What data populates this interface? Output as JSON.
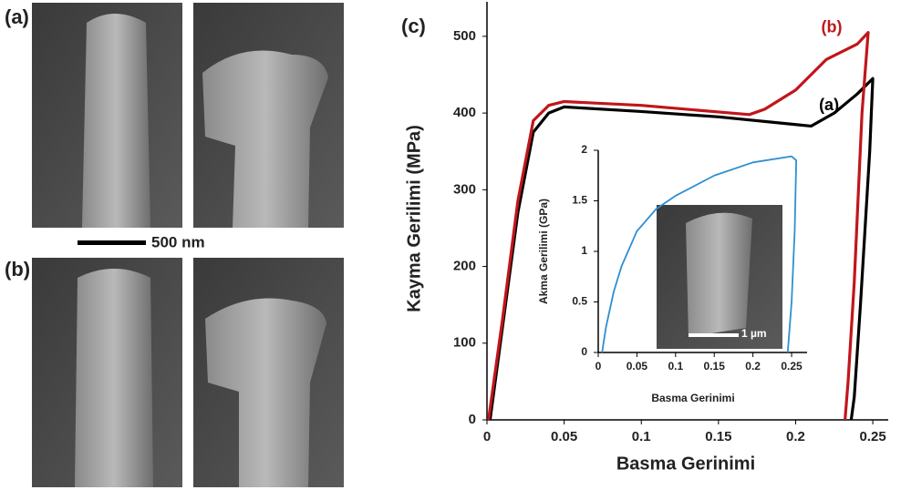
{
  "panel_labels": [
    "(a)",
    "(b)"
  ],
  "scale_bar": "500 nm",
  "chart_data": [
    {
      "type": "line",
      "panel_label": "(c)",
      "x_label": "Basma Gerinimi",
      "y_label": "Kayma Gerilimi (MPa)",
      "xlim": [
        0,
        0.26
      ],
      "ylim": [
        0,
        545
      ],
      "xticks": [
        0,
        0.05,
        0.1,
        0.15,
        0.2,
        0.25
      ],
      "yticks": [
        0,
        100,
        200,
        300,
        400,
        500
      ],
      "series": [
        {
          "name": "(a)",
          "color": "#000000",
          "x": [
            0.002,
            0.01,
            0.02,
            0.03,
            0.04,
            0.05,
            0.1,
            0.15,
            0.2,
            0.21,
            0.225,
            0.24,
            0.25,
            0.248,
            0.242,
            0.238,
            0.236
          ],
          "values": [
            0,
            120,
            270,
            375,
            400,
            408,
            402,
            395,
            385,
            383,
            400,
            425,
            445,
            350,
            150,
            30,
            0
          ]
        },
        {
          "name": "(b)",
          "color": "#c0161b",
          "x": [
            0.001,
            0.01,
            0.02,
            0.03,
            0.04,
            0.05,
            0.1,
            0.17,
            0.18,
            0.2,
            0.22,
            0.24,
            0.247,
            0.243,
            0.238,
            0.234,
            0.232
          ],
          "values": [
            0,
            130,
            285,
            390,
            410,
            415,
            410,
            398,
            405,
            430,
            470,
            490,
            505,
            400,
            180,
            50,
            0
          ]
        }
      ]
    },
    {
      "type": "line",
      "x_label": "Basma Gerinimi",
      "y_label": "Akma Gerilimi (GPa)",
      "image_scale_bar": "1 µm",
      "xlim": [
        0,
        0.27
      ],
      "ylim": [
        0,
        2
      ],
      "xticks": [
        0,
        0.05,
        0.1,
        0.15,
        0.2,
        0.25
      ],
      "yticks": [
        0,
        0.5,
        1,
        1.5,
        2
      ],
      "series": [
        {
          "color": "#2e8fd0",
          "x": [
            0.005,
            0.01,
            0.02,
            0.03,
            0.05,
            0.075,
            0.1,
            0.15,
            0.2,
            0.25,
            0.256,
            0.254,
            0.25,
            0.245
          ],
          "values": [
            0,
            0.25,
            0.6,
            0.85,
            1.2,
            1.42,
            1.55,
            1.75,
            1.88,
            1.94,
            1.9,
            1.2,
            0.5,
            0
          ]
        }
      ]
    }
  ]
}
